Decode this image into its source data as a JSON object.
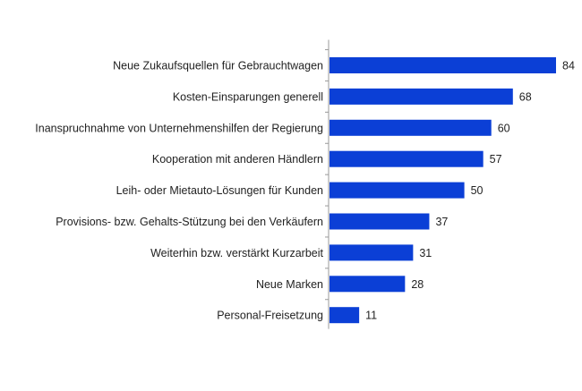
{
  "chart_data": {
    "type": "bar",
    "orientation": "horizontal",
    "title": "",
    "xlabel": "",
    "ylabel": "",
    "xlim": [
      0,
      84
    ],
    "grid": false,
    "categories": [
      "Neue Zukaufsquellen für Gebrauchtwagen",
      "Kosten-Einsparungen generell",
      "Inanspruchnahme von Unternehmenshilfen der Regierung",
      "Kooperation mit anderen Händlern",
      "Leih- oder Mietauto-Lösungen für Kunden",
      "Provisions- bzw. Gehalts-Stützung bei den Verkäufern",
      "Weiterhin bzw. verstärkt Kurzarbeit",
      "Neue Marken",
      "Personal-Freisetzung"
    ],
    "values": [
      84,
      68,
      60,
      57,
      50,
      37,
      31,
      28,
      11
    ],
    "bar_color": "#0b3fd6"
  }
}
